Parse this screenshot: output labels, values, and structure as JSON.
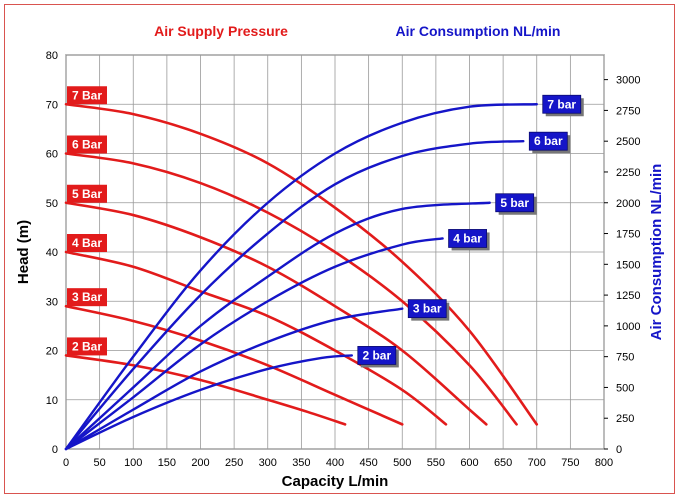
{
  "chart_data": {
    "type": "line",
    "title_left": "Air Supply Pressure",
    "title_right": "Air Consumption NL/min",
    "xlabel": "Capacity L/min",
    "ylabel_left": "Head (m)",
    "ylabel_right": "Air Consumption NL/min",
    "xlim": [
      0,
      800
    ],
    "ylim_left": [
      0,
      80
    ],
    "ylim_right": [
      0,
      3200
    ],
    "x_ticks": [
      0,
      50,
      100,
      150,
      200,
      250,
      300,
      350,
      400,
      450,
      500,
      550,
      600,
      650,
      700,
      750,
      800
    ],
    "y_ticks_left": [
      0,
      10,
      20,
      30,
      40,
      50,
      60,
      70,
      80
    ],
    "y_ticks_right": [
      0,
      250,
      500,
      750,
      1000,
      1250,
      1500,
      1750,
      2000,
      2250,
      2500,
      2750,
      3000
    ],
    "grid": true,
    "colors": {
      "pressure": "#e21b1b",
      "consumption": "#1515c8",
      "frame": "#d9534f"
    },
    "pressure_series": [
      {
        "name": "7 Bar",
        "points": [
          [
            0,
            70
          ],
          [
            100,
            68
          ],
          [
            200,
            64
          ],
          [
            300,
            58
          ],
          [
            400,
            49
          ],
          [
            500,
            38
          ],
          [
            600,
            24
          ],
          [
            700,
            5
          ]
        ]
      },
      {
        "name": "6 Bar",
        "points": [
          [
            0,
            60
          ],
          [
            100,
            58
          ],
          [
            200,
            54
          ],
          [
            300,
            48
          ],
          [
            400,
            40
          ],
          [
            500,
            30
          ],
          [
            600,
            17
          ],
          [
            670,
            5
          ]
        ]
      },
      {
        "name": "5 Bar",
        "points": [
          [
            0,
            50
          ],
          [
            100,
            47.5
          ],
          [
            200,
            43
          ],
          [
            300,
            37
          ],
          [
            400,
            29
          ],
          [
            500,
            20
          ],
          [
            600,
            8
          ],
          [
            625,
            5
          ]
        ]
      },
      {
        "name": "4 Bar",
        "points": [
          [
            0,
            40
          ],
          [
            100,
            37
          ],
          [
            200,
            32
          ],
          [
            300,
            27
          ],
          [
            400,
            20
          ],
          [
            500,
            12
          ],
          [
            565,
            5
          ]
        ]
      },
      {
        "name": "3 Bar",
        "points": [
          [
            0,
            29
          ],
          [
            100,
            26
          ],
          [
            200,
            22
          ],
          [
            300,
            17
          ],
          [
            400,
            11
          ],
          [
            500,
            5
          ]
        ]
      },
      {
        "name": "2 Bar",
        "points": [
          [
            0,
            19
          ],
          [
            100,
            17
          ],
          [
            200,
            14
          ],
          [
            300,
            10
          ],
          [
            360,
            7.5
          ],
          [
            415,
            5
          ]
        ]
      }
    ],
    "consumption_series": [
      {
        "name": "7 bar",
        "points": [
          [
            0,
            0
          ],
          [
            100,
            750
          ],
          [
            200,
            1450
          ],
          [
            300,
            2000
          ],
          [
            400,
            2400
          ],
          [
            500,
            2650
          ],
          [
            600,
            2780
          ],
          [
            700,
            2800
          ]
        ]
      },
      {
        "name": "6 bar",
        "points": [
          [
            0,
            0
          ],
          [
            100,
            650
          ],
          [
            200,
            1250
          ],
          [
            300,
            1750
          ],
          [
            400,
            2150
          ],
          [
            500,
            2380
          ],
          [
            600,
            2480
          ],
          [
            680,
            2500
          ]
        ]
      },
      {
        "name": "5 bar",
        "points": [
          [
            0,
            0
          ],
          [
            100,
            500
          ],
          [
            200,
            1000
          ],
          [
            300,
            1400
          ],
          [
            400,
            1750
          ],
          [
            500,
            1950
          ],
          [
            630,
            2000
          ]
        ]
      },
      {
        "name": "4 bar",
        "points": [
          [
            0,
            0
          ],
          [
            100,
            420
          ],
          [
            200,
            850
          ],
          [
            300,
            1200
          ],
          [
            400,
            1480
          ],
          [
            500,
            1660
          ],
          [
            560,
            1710
          ]
        ]
      },
      {
        "name": "3 bar",
        "points": [
          [
            0,
            0
          ],
          [
            100,
            320
          ],
          [
            200,
            630
          ],
          [
            300,
            870
          ],
          [
            400,
            1050
          ],
          [
            500,
            1140
          ]
        ]
      },
      {
        "name": "2 bar",
        "points": [
          [
            0,
            0
          ],
          [
            100,
            260
          ],
          [
            200,
            480
          ],
          [
            300,
            650
          ],
          [
            380,
            740
          ],
          [
            425,
            760
          ]
        ]
      }
    ]
  }
}
